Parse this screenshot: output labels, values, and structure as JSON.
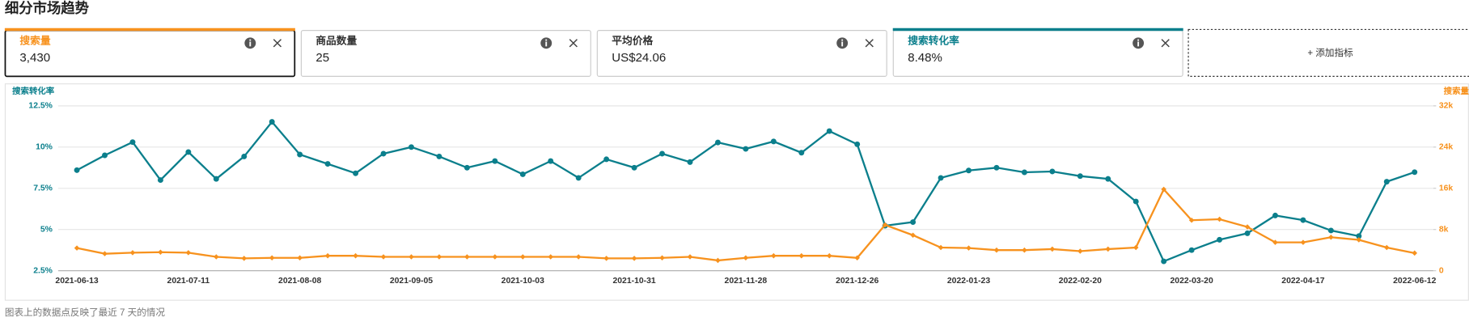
{
  "header": {
    "title": "细分市场趋势"
  },
  "cards": [
    {
      "title": "搜索量",
      "value": "3,430"
    },
    {
      "title": "商品数量",
      "value": "25"
    },
    {
      "title": "平均价格",
      "value": "US$24.06"
    },
    {
      "title": "搜索转化率",
      "value": "8.48%"
    }
  ],
  "add_metric": "+ 添加指标",
  "footer": "图表上的数据点反映了最近 7 天的情况",
  "chart_data": {
    "type": "line",
    "ylabel": "搜索转化率",
    "y2label": "搜索量",
    "categories": [
      "2021-06-13",
      null,
      null,
      null,
      "2021-07-11",
      null,
      null,
      null,
      "2021-08-08",
      null,
      null,
      null,
      "2021-09-05",
      null,
      null,
      null,
      "2021-10-03",
      null,
      null,
      null,
      "2021-10-31",
      null,
      null,
      null,
      "2021-11-28",
      null,
      null,
      null,
      "2021-12-26",
      null,
      null,
      null,
      "2022-01-23",
      null,
      null,
      null,
      "2022-02-20",
      null,
      null,
      null,
      "2022-03-20",
      null,
      null,
      null,
      "2022-04-17",
      null,
      null,
      null,
      "2022-06-12"
    ],
    "series": [
      {
        "name": "搜索转化率",
        "color": "#0b7f8c",
        "axis": "y",
        "values": [
          8.6,
          9.5,
          10.3,
          8.0,
          9.7,
          8.07,
          9.43,
          11.53,
          9.55,
          8.98,
          8.41,
          9.6,
          10.0,
          9.43,
          8.75,
          9.15,
          8.35,
          9.15,
          8.13,
          9.26,
          8.75,
          9.6,
          9.09,
          10.28,
          9.89,
          10.34,
          9.66,
          10.97,
          10.17,
          5.23,
          5.45,
          8.13,
          8.58,
          8.75,
          8.47,
          8.52,
          8.24,
          8.07,
          6.7,
          3.07,
          3.75,
          4.38,
          4.77,
          5.85,
          5.57,
          4.94,
          4.6,
          7.9,
          8.48
        ]
      },
      {
        "name": "搜索量",
        "color": "#f7921e",
        "axis": "y2",
        "values": [
          4400,
          3300,
          3500,
          3600,
          3500,
          2700,
          2400,
          2500,
          2500,
          2900,
          2900,
          2700,
          2700,
          2700,
          2700,
          2700,
          2700,
          2700,
          2700,
          2400,
          2400,
          2500,
          2700,
          2000,
          2500,
          2900,
          2900,
          2900,
          2500,
          8900,
          6900,
          4500,
          4400,
          4000,
          4000,
          4200,
          3800,
          4200,
          4500,
          15800,
          9800,
          10000,
          8500,
          5500,
          5500,
          6500,
          6000,
          4500,
          3430
        ]
      }
    ],
    "ylim": [
      2.5,
      12.5
    ],
    "yticks": [
      {
        "value": 2.5,
        "label": "2.5%"
      },
      {
        "value": 5,
        "label": "5%"
      },
      {
        "value": 7.5,
        "label": "7.5%"
      },
      {
        "value": 10,
        "label": "10%"
      },
      {
        "value": 12.5,
        "label": "12.5%"
      }
    ],
    "y2lim": [
      0,
      32000
    ],
    "y2ticks": [
      0,
      {
        "value": 8000,
        "label": "8k"
      },
      {
        "value": 16000,
        "label": "16k"
      },
      {
        "value": 24000,
        "label": "24k"
      },
      {
        "value": 32000,
        "label": "32k"
      }
    ],
    "grid": true
  }
}
